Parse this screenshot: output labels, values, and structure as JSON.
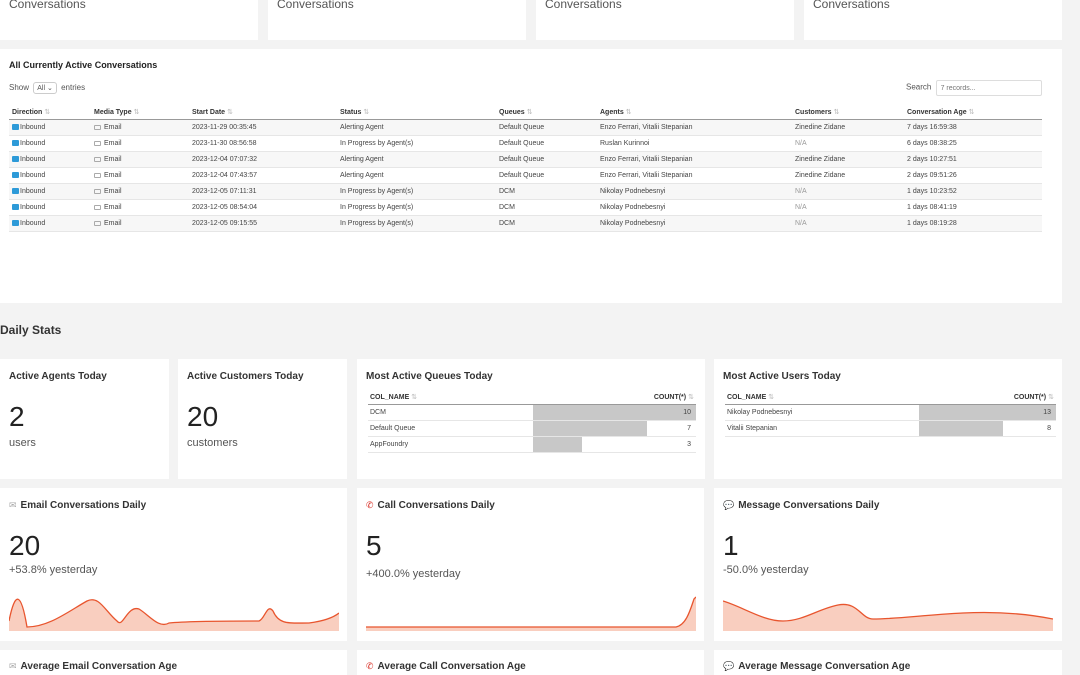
{
  "top_cards": [
    "Conversations",
    "Conversations",
    "Conversations",
    "Conversations"
  ],
  "active": {
    "title": "All Currently Active Conversations",
    "show_label": "Show",
    "show_value": "All",
    "entries_label": "entries",
    "search_label": "Search",
    "search_placeholder": "7 records...",
    "columns": [
      "Direction",
      "Media Type",
      "Start Date",
      "Status",
      "Queues",
      "Agents",
      "Customers",
      "Conversation Age"
    ],
    "rows": [
      [
        "Inbound",
        "Email",
        "2023-11-29 00:35:45",
        "Alerting Agent",
        "Default Queue",
        "Enzo Ferrari, Vitalii Stepanian",
        "Zinedine Zidane",
        "7 days 16:59:38"
      ],
      [
        "Inbound",
        "Email",
        "2023-11-30 08:56:58",
        "In Progress by Agent(s)",
        "Default Queue",
        "Ruslan Kurinnoi",
        "N/A",
        "6 days 08:38:25"
      ],
      [
        "Inbound",
        "Email",
        "2023-12-04 07:07:32",
        "Alerting Agent",
        "Default Queue",
        "Enzo Ferrari, Vitalii Stepanian",
        "Zinedine Zidane",
        "2 days 10:27:51"
      ],
      [
        "Inbound",
        "Email",
        "2023-12-04 07:43:57",
        "Alerting Agent",
        "Default Queue",
        "Enzo Ferrari, Vitalii Stepanian",
        "Zinedine Zidane",
        "2 days 09:51:26"
      ],
      [
        "Inbound",
        "Email",
        "2023-12-05 07:11:31",
        "In Progress by Agent(s)",
        "DCM",
        "Nikolay Podnebesnyi",
        "N/A",
        "1 days 10:23:52"
      ],
      [
        "Inbound",
        "Email",
        "2023-12-05 08:54:04",
        "In Progress by Agent(s)",
        "DCM",
        "Nikolay Podnebesnyi",
        "N/A",
        "1 days 08:41:19"
      ],
      [
        "Inbound",
        "Email",
        "2023-12-05 09:15:55",
        "In Progress by Agent(s)",
        "DCM",
        "Nikolay Podnebesnyi",
        "N/A",
        "1 days 08:19:28"
      ]
    ]
  },
  "daily": {
    "title": "Daily Stats",
    "agents": {
      "title": "Active Agents Today",
      "value": "2",
      "unit": "users"
    },
    "customers": {
      "title": "Active Customers Today",
      "value": "20",
      "unit": "customers"
    },
    "queues": {
      "title": "Most Active Queues Today",
      "col1": "COL_NAME",
      "col2": "COUNT(*)",
      "max": 10,
      "rows": [
        {
          "name": "DCM",
          "count": 10
        },
        {
          "name": "Default Queue",
          "count": 7
        },
        {
          "name": "AppFoundry",
          "count": 3
        }
      ]
    },
    "users": {
      "title": "Most Active Users Today",
      "col1": "COL_NAME",
      "col2": "COUNT(*)",
      "max": 13,
      "rows": [
        {
          "name": "Nikolay Podnebesnyi",
          "count": 13
        },
        {
          "name": "Vitalii Stepanian",
          "count": 8
        }
      ]
    },
    "email": {
      "title": "Email Conversations Daily",
      "value": "20",
      "delta": "+53.8% yesterday"
    },
    "call": {
      "title": "Call Conversations Daily",
      "value": "5",
      "delta": "+400.0% yesterday"
    },
    "message": {
      "title": "Message Conversations Daily",
      "value": "1",
      "delta": "-50.0% yesterday"
    },
    "avg_email": {
      "title": "Average Email Conversation Age"
    },
    "avg_call": {
      "title": "Average Call Conversation Age"
    },
    "avg_message": {
      "title": "Average Message Conversation Age"
    }
  },
  "colors": {
    "accent": "#e8552e",
    "spark_fill": "#f7b9a4",
    "direction_icon": "#2d9ad8",
    "call_icon": "#d9342b",
    "bar": "#c8c8c8"
  }
}
